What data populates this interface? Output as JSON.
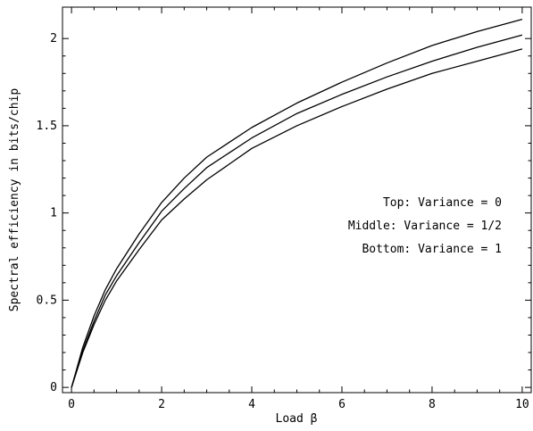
{
  "chart_data": {
    "type": "line",
    "xlabel": "Load β",
    "ylabel": "Spectral efficiency in bits/chip",
    "xlim": [
      -0.2,
      10.2
    ],
    "ylim": [
      -0.03,
      2.18
    ],
    "xticks": [
      0,
      2,
      4,
      6,
      8,
      10
    ],
    "xtick_labels": [
      "0",
      "2",
      "4",
      "6",
      "8",
      "10"
    ],
    "yticks": [
      0,
      0.5,
      1,
      1.5,
      2
    ],
    "ytick_labels": [
      "0",
      "0.5",
      "1",
      "1.5",
      "2"
    ],
    "grid": false,
    "line_color": "#000000",
    "x": [
      0,
      0.25,
      0.5,
      0.75,
      1,
      1.5,
      2,
      2.5,
      3,
      4,
      5,
      6,
      7,
      8,
      9,
      10
    ],
    "series": [
      {
        "values": [
          0,
          0.23,
          0.41,
          0.56,
          0.68,
          0.88,
          1.06,
          1.2,
          1.32,
          1.49,
          1.63,
          1.75,
          1.86,
          1.96,
          2.04,
          2.11
        ]
      },
      {
        "values": [
          0,
          0.21,
          0.38,
          0.53,
          0.64,
          0.83,
          1.01,
          1.14,
          1.26,
          1.43,
          1.57,
          1.68,
          1.78,
          1.87,
          1.95,
          2.02
        ]
      },
      {
        "values": [
          0,
          0.2,
          0.36,
          0.5,
          0.61,
          0.79,
          0.96,
          1.08,
          1.19,
          1.37,
          1.5,
          1.61,
          1.71,
          1.8,
          1.87,
          1.94
        ]
      }
    ],
    "annotations": [
      "Top: Variance = 0",
      "Middle: Variance = 1/2",
      "Bottom: Variance = 1"
    ]
  }
}
